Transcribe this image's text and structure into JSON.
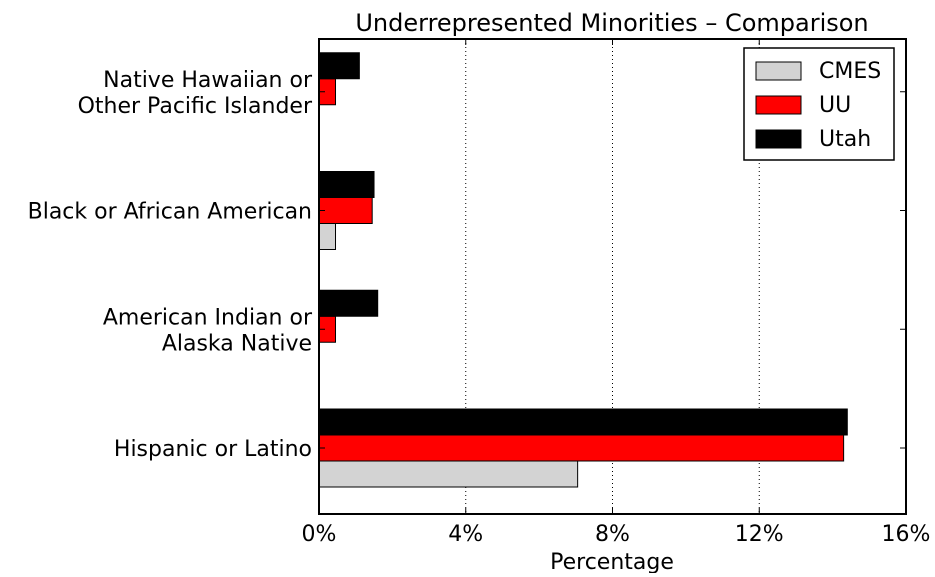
{
  "chart_data": {
    "type": "bar",
    "orientation": "horizontal",
    "title": "Underrepresented Minorities – Comparison",
    "xlabel": "Percentage",
    "ylabel": "",
    "xlim": [
      0,
      16
    ],
    "xticks": [
      0,
      4,
      8,
      12,
      16
    ],
    "xtick_labels": [
      "0%",
      "4%",
      "8%",
      "12%",
      "16%"
    ],
    "grid": "vertical dotted",
    "legend_position": "top-right",
    "categories": [
      [
        "Hispanic or Latino"
      ],
      [
        "American Indian or",
        "Alaska Native"
      ],
      [
        "Black or African American"
      ],
      [
        "Native Hawaiian or",
        "Other Pacific Islander"
      ]
    ],
    "series": [
      {
        "name": "CMES",
        "color": "#d3d3d3",
        "values": [
          7.05,
          0,
          0.45,
          0
        ]
      },
      {
        "name": "UU",
        "color": "#ff0000",
        "values": [
          14.3,
          0.45,
          1.45,
          0.45
        ]
      },
      {
        "name": "Utah",
        "color": "#000000",
        "values": [
          14.4,
          1.6,
          1.5,
          1.1
        ]
      }
    ]
  }
}
